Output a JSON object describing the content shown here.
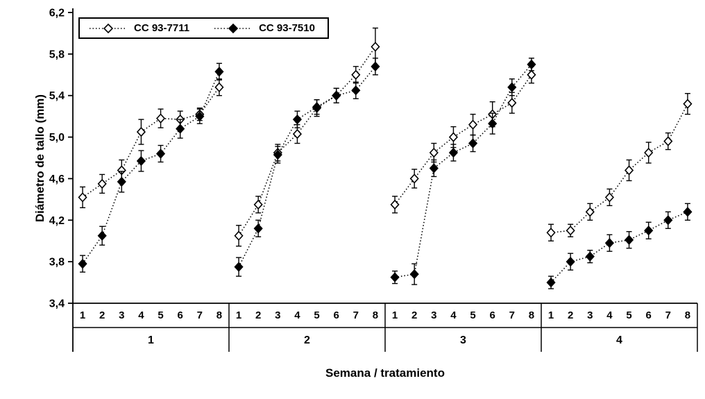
{
  "chart_data": {
    "type": "line",
    "title": "",
    "ylabel": "Diámetro de tallo (mm)",
    "xlabel": "Semana / tratamiento",
    "ylim": [
      3.4,
      6.2
    ],
    "yticks": [
      3.4,
      3.8,
      4.2,
      4.6,
      5.0,
      5.4,
      5.8,
      6.2
    ],
    "ytick_labels": [
      "3,4",
      "3,8",
      "4,2",
      "4,6",
      "5,0",
      "5,4",
      "5,8",
      "6,2"
    ],
    "week_labels": [
      "1",
      "2",
      "3",
      "4",
      "5",
      "6",
      "7",
      "8"
    ],
    "group_labels": [
      "1",
      "2",
      "3",
      "4"
    ],
    "grid": false,
    "legend_position": "top-left",
    "line_style": "dotted",
    "colors": {
      "stroke": "#000000",
      "open_marker_fill": "#ffffff",
      "filled_marker_fill": "#000000"
    },
    "series": [
      {
        "name": "CC 93-7711",
        "marker": "open-diamond",
        "groups": [
          [
            4.42,
            4.55,
            4.68,
            5.05,
            5.18,
            5.17,
            5.22,
            5.48
          ],
          [
            4.05,
            4.35,
            4.85,
            5.03,
            5.28,
            5.4,
            5.6,
            5.87
          ],
          [
            4.35,
            4.6,
            4.85,
            5.0,
            5.12,
            5.22,
            5.33,
            5.6
          ],
          [
            4.08,
            4.1,
            4.28,
            4.42,
            4.68,
            4.85,
            4.96,
            5.32
          ]
        ],
        "errors": [
          [
            0.1,
            0.09,
            0.1,
            0.12,
            0.09,
            0.08,
            0.06,
            0.08
          ],
          [
            0.1,
            0.08,
            0.08,
            0.09,
            0.08,
            0.07,
            0.08,
            0.18
          ],
          [
            0.08,
            0.09,
            0.09,
            0.1,
            0.1,
            0.12,
            0.1,
            0.08
          ],
          [
            0.08,
            0.06,
            0.08,
            0.08,
            0.1,
            0.1,
            0.08,
            0.1
          ]
        ]
      },
      {
        "name": "CC 93-7510",
        "marker": "filled-diamond",
        "groups": [
          [
            3.78,
            4.05,
            4.57,
            4.77,
            4.84,
            5.08,
            5.2,
            5.63
          ],
          [
            3.75,
            4.12,
            4.83,
            5.17,
            5.29,
            5.4,
            5.45,
            5.68
          ],
          [
            3.65,
            3.68,
            4.7,
            4.85,
            4.94,
            5.13,
            5.48,
            5.7
          ],
          [
            3.6,
            3.8,
            3.85,
            3.98,
            4.01,
            4.1,
            4.2,
            4.28
          ]
        ],
        "errors": [
          [
            0.08,
            0.09,
            0.1,
            0.1,
            0.08,
            0.09,
            0.07,
            0.08
          ],
          [
            0.09,
            0.08,
            0.08,
            0.08,
            0.07,
            0.07,
            0.08,
            0.08
          ],
          [
            0.06,
            0.1,
            0.08,
            0.08,
            0.08,
            0.1,
            0.08,
            0.06
          ],
          [
            0.06,
            0.08,
            0.06,
            0.08,
            0.08,
            0.08,
            0.08,
            0.08
          ]
        ]
      }
    ]
  }
}
